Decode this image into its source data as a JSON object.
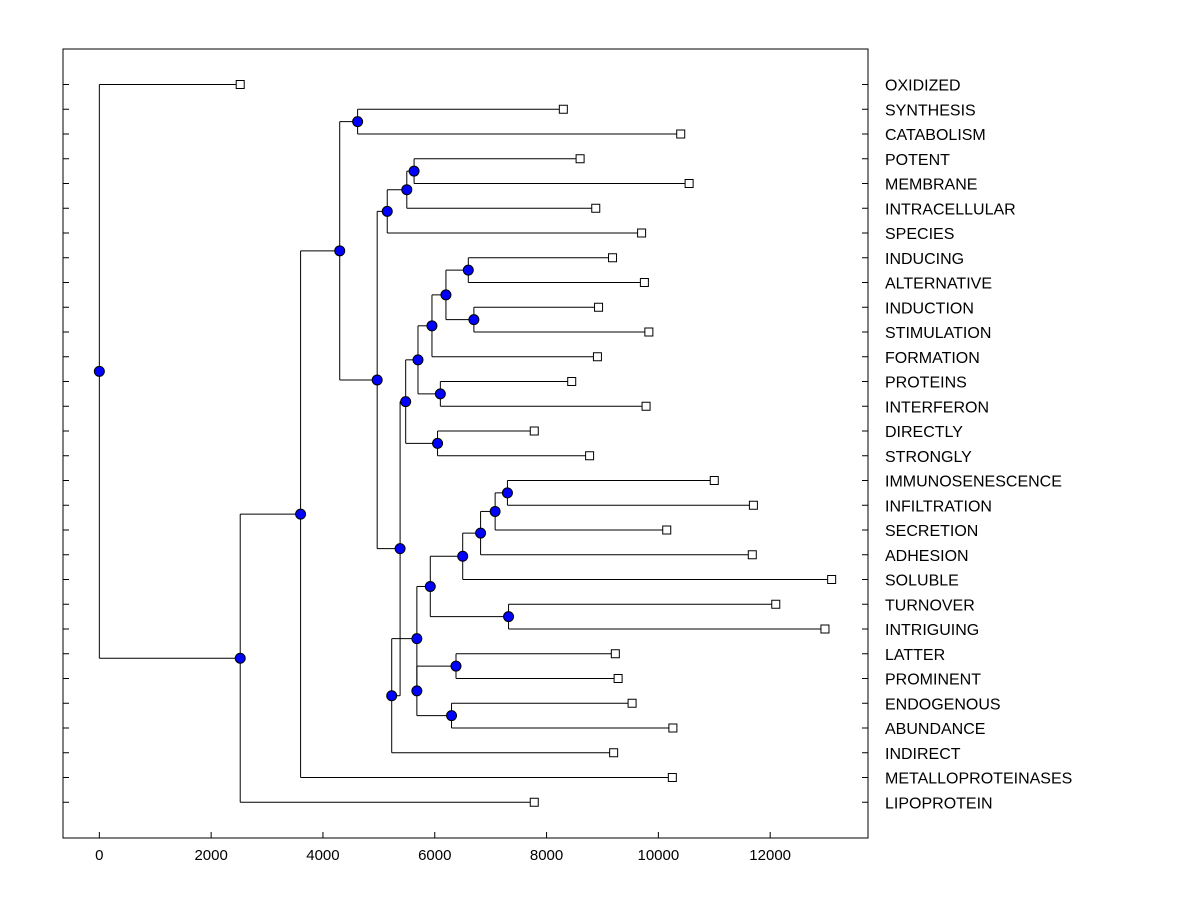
{
  "chart_data": {
    "type": "dendrogram",
    "title": "",
    "xlabel": "",
    "ylabel": "",
    "xlim": [
      -650,
      13750
    ],
    "x_ticks": [
      0,
      2000,
      4000,
      6000,
      8000,
      10000,
      12000
    ],
    "x_tick_labels": [
      "0",
      "2000",
      "4000",
      "6000",
      "8000",
      "10000",
      "12000"
    ],
    "colors": {
      "node": "#0000ff",
      "line": "#000000",
      "leaf": "#ffffff"
    },
    "leaves": [
      {
        "label": "OXIDIZED",
        "value": 2520
      },
      {
        "label": "SYNTHESIS",
        "value": 8300
      },
      {
        "label": "CATABOLISM",
        "value": 10400
      },
      {
        "label": "POTENT",
        "value": 8600
      },
      {
        "label": "MEMBRANE",
        "value": 10550
      },
      {
        "label": "INTRACELLULAR",
        "value": 8880
      },
      {
        "label": "SPECIES",
        "value": 9700
      },
      {
        "label": "INDUCING",
        "value": 9180
      },
      {
        "label": "ALTERNATIVE",
        "value": 9750
      },
      {
        "label": "INDUCTION",
        "value": 8930
      },
      {
        "label": "STIMULATION",
        "value": 9830
      },
      {
        "label": "FORMATION",
        "value": 8910
      },
      {
        "label": "PROTEINS",
        "value": 8450
      },
      {
        "label": "INTERFERON",
        "value": 9780
      },
      {
        "label": "DIRECTLY",
        "value": 7780
      },
      {
        "label": "STRONGLY",
        "value": 8770
      },
      {
        "label": "IMMUNOSENESCENCE",
        "value": 11000
      },
      {
        "label": "INFILTRATION",
        "value": 11700
      },
      {
        "label": "SECRETION",
        "value": 10150
      },
      {
        "label": "ADHESION",
        "value": 11680
      },
      {
        "label": "SOLUBLE",
        "value": 13100
      },
      {
        "label": "TURNOVER",
        "value": 12100
      },
      {
        "label": "INTRIGUING",
        "value": 12980
      },
      {
        "label": "LATTER",
        "value": 9230
      },
      {
        "label": "PROMINENT",
        "value": 9280
      },
      {
        "label": "ENDOGENOUS",
        "value": 9530
      },
      {
        "label": "ABUNDANCE",
        "value": 10260
      },
      {
        "label": "INDIRECT",
        "value": 9200
      },
      {
        "label": "METALLOPROTEINASES",
        "value": 10250
      },
      {
        "label": "LIPOPROTEIN",
        "value": 7780
      }
    ],
    "merges": [
      {
        "id": "n1",
        "value": 4620,
        "children": [
          "L1",
          "L2"
        ]
      },
      {
        "id": "n2",
        "value": 5630,
        "children": [
          "L3",
          "L4"
        ]
      },
      {
        "id": "n3",
        "value": 5500,
        "children": [
          "n2",
          "L5"
        ]
      },
      {
        "id": "n4",
        "value": 5150,
        "children": [
          "n3",
          "L6"
        ]
      },
      {
        "id": "n5",
        "value": 6600,
        "children": [
          "L7",
          "L8"
        ]
      },
      {
        "id": "n6",
        "value": 6700,
        "children": [
          "L9",
          "L10"
        ]
      },
      {
        "id": "n7",
        "value": 6200,
        "children": [
          "n5",
          "n6"
        ]
      },
      {
        "id": "n8",
        "value": 5950,
        "children": [
          "n7",
          "L11"
        ]
      },
      {
        "id": "n9",
        "value": 6100,
        "children": [
          "L12",
          "L13"
        ]
      },
      {
        "id": "n10",
        "value": 5700,
        "children": [
          "n8",
          "n9"
        ]
      },
      {
        "id": "n11",
        "value": 6050,
        "children": [
          "L14",
          "L15"
        ]
      },
      {
        "id": "n12",
        "value": 5480,
        "children": [
          "n10",
          "n11"
        ]
      },
      {
        "id": "n13",
        "value": 7300,
        "children": [
          "L16",
          "L17"
        ]
      },
      {
        "id": "n14",
        "value": 7080,
        "children": [
          "n13",
          "L18"
        ]
      },
      {
        "id": "n15",
        "value": 6820,
        "children": [
          "n14",
          "L19"
        ]
      },
      {
        "id": "n16",
        "value": 6500,
        "children": [
          "n15",
          "L20"
        ]
      },
      {
        "id": "n17",
        "value": 7320,
        "children": [
          "L21",
          "L22"
        ]
      },
      {
        "id": "n18",
        "value": 5920,
        "children": [
          "n16",
          "n17"
        ]
      },
      {
        "id": "n19",
        "value": 6380,
        "children": [
          "L23",
          "L24"
        ]
      },
      {
        "id": "n20",
        "value": 6300,
        "children": [
          "L25",
          "L26"
        ]
      },
      {
        "id": "n21",
        "value": 5680,
        "children": [
          "n19",
          "n20"
        ]
      },
      {
        "id": "n22",
        "value": 5680,
        "children": [
          "n18",
          "n21"
        ]
      },
      {
        "id": "n23",
        "value": 5230,
        "children": [
          "n22",
          "L27"
        ]
      },
      {
        "id": "n24",
        "value": 5380,
        "children": [
          "n12",
          "n23"
        ]
      },
      {
        "id": "n25",
        "value": 4970,
        "children": [
          "n4",
          "n24"
        ]
      },
      {
        "id": "n26",
        "value": 4300,
        "children": [
          "n1",
          "n25"
        ]
      },
      {
        "id": "n27",
        "value": 3600,
        "children": [
          "n26",
          "L28"
        ]
      },
      {
        "id": "n28",
        "value": 2520,
        "children": [
          "n27",
          "L29"
        ]
      },
      {
        "id": "n29",
        "value": 0,
        "children": [
          "L0",
          "n28"
        ]
      }
    ]
  }
}
